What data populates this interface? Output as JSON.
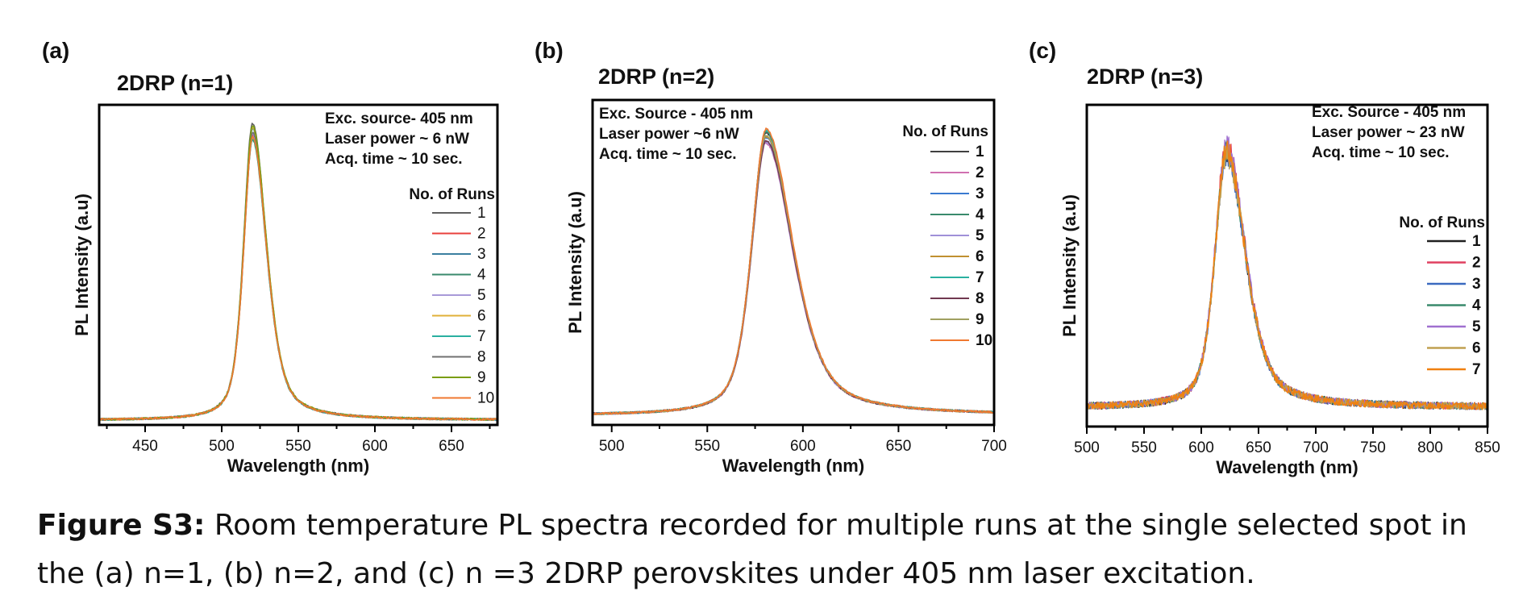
{
  "caption": {
    "label": "Figure S3:",
    "text": " Room temperature PL spectra recorded for multiple runs at the single selected spot in the (a) n=1, (b) n=2, and (c) n =3 2DRP perovskites under 405 nm laser excitation."
  },
  "chart_data": [
    {
      "type": "line",
      "panel_label": "(a)",
      "title": "2DRP (n=1)",
      "xlabel": "Wavelength (nm)",
      "ylabel": "PL Intensity (a.u)",
      "xlim": [
        420,
        680
      ],
      "ylim": [
        0,
        1.0
      ],
      "xticks": [
        450,
        500,
        550,
        600,
        650
      ],
      "y_tick_labels": false,
      "annotations": [
        "Exc. source- 405 nm",
        "Laser power ~ 6 nW",
        "Acq. time ~ 10 sec."
      ],
      "legend_title": "No. of Runs",
      "legend_position": "right",
      "peak": {
        "center": 520,
        "hwhm_left": 7,
        "hwhm_right": 11,
        "baseline": 0.015,
        "amplitude": 0.9
      },
      "series": [
        {
          "name": "1",
          "color": "#606060"
        },
        {
          "name": "2",
          "color": "#e8403c"
        },
        {
          "name": "3",
          "color": "#3b7fa0"
        },
        {
          "name": "4",
          "color": "#3a8a6c"
        },
        {
          "name": "5",
          "color": "#a89ad8"
        },
        {
          "name": "6",
          "color": "#e0b038"
        },
        {
          "name": "7",
          "color": "#2ab0a0"
        },
        {
          "name": "8",
          "color": "#707070"
        },
        {
          "name": "9",
          "color": "#7a9e10"
        },
        {
          "name": "10",
          "color": "#f07830"
        }
      ]
    },
    {
      "type": "line",
      "panel_label": "(b)",
      "title": "2DRP (n=2)",
      "xlabel": "Wavelength (nm)",
      "ylabel": "PL Intensity (a.u)",
      "xlim": [
        490,
        700
      ],
      "ylim": [
        0,
        1.0
      ],
      "xticks": [
        500,
        550,
        600,
        650,
        700
      ],
      "y_tick_labels": false,
      "annotations": [
        "Exc. Source - 405 nm",
        "Laser power ~6 nW",
        "Acq. time ~ 10 sec."
      ],
      "legend_title": "No. of Runs",
      "legend_position": "right",
      "peak": {
        "center": 581,
        "hwhm_left": 9,
        "hwhm_right": 17,
        "baseline": 0.03,
        "amplitude": 0.86
      },
      "series": [
        {
          "name": "1",
          "color": "#404040"
        },
        {
          "name": "2",
          "color": "#d070b0"
        },
        {
          "name": "3",
          "color": "#3a7ad0"
        },
        {
          "name": "4",
          "color": "#3a8a6c"
        },
        {
          "name": "5",
          "color": "#a090d8"
        },
        {
          "name": "6",
          "color": "#c09030"
        },
        {
          "name": "7",
          "color": "#2ab0a0"
        },
        {
          "name": "8",
          "color": "#703850"
        },
        {
          "name": "9",
          "color": "#a0a060"
        },
        {
          "name": "10",
          "color": "#f07830"
        }
      ]
    },
    {
      "type": "line",
      "panel_label": "(c)",
      "title": "2DRP (n=3)",
      "xlabel": "Wavelength (nm)",
      "ylabel": "PL Intensity (a.u)",
      "xlim": [
        500,
        850
      ],
      "ylim": [
        0,
        1.0
      ],
      "xticks": [
        500,
        550,
        600,
        650,
        700,
        750,
        800,
        850
      ],
      "y_tick_labels": false,
      "annotations": [
        "Exc. Source - 405 nm",
        "Laser power ~ 23 nW",
        "Acq. time ~ 10 sec."
      ],
      "legend_title": "No. of Runs",
      "legend_position": "right",
      "peak": {
        "center": 622,
        "hwhm_left": 12,
        "hwhm_right": 20,
        "baseline": 0.06,
        "amplitude": 0.8
      },
      "series": [
        {
          "name": "1",
          "color": "#202020"
        },
        {
          "name": "2",
          "color": "#e04060"
        },
        {
          "name": "3",
          "color": "#3a6ac0"
        },
        {
          "name": "4",
          "color": "#3a8a6c"
        },
        {
          "name": "5",
          "color": "#a070d0"
        },
        {
          "name": "6",
          "color": "#c0a050"
        },
        {
          "name": "7",
          "color": "#f08010"
        }
      ]
    }
  ]
}
